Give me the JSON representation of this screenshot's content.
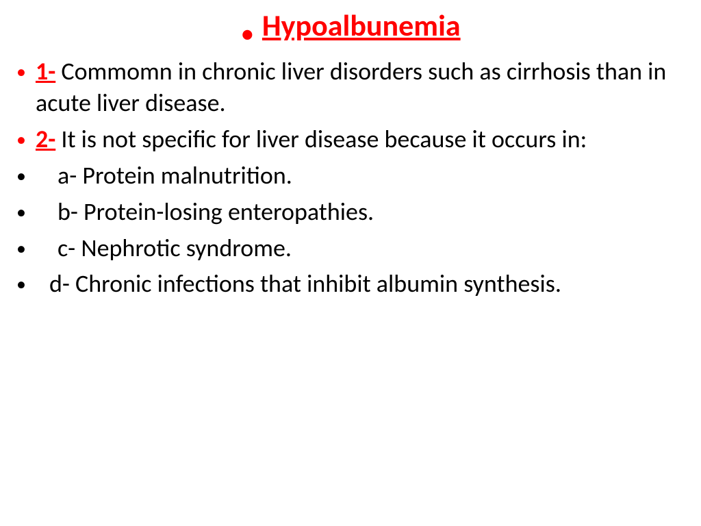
{
  "title": "Hypoalbunemia",
  "point1": {
    "label": "1-",
    "text": " Commomn in chronic liver disorders such as cirrhosis than in acute liver disease."
  },
  "point2": {
    "label": "2-",
    "text": " It is not specific for liver disease because it occurs in:"
  },
  "sub_a": "a- Protein malnutrition.",
  "sub_b": "b- Protein-losing enteropathies.",
  "sub_c": "c- Nephrotic syndrome.",
  "sub_d": "d- Chronic infections that inhibit albumin synthesis.",
  "colors": {
    "accent": "#ff0000",
    "text": "#000000",
    "background": "#ffffff"
  },
  "fonts": {
    "title_size": 44,
    "body_size": 36
  }
}
